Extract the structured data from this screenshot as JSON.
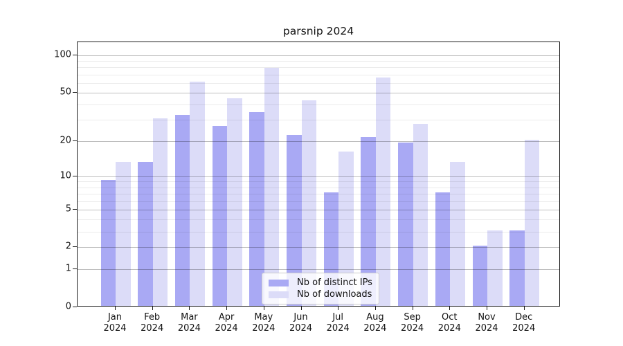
{
  "chart_data": {
    "type": "bar",
    "title": "parsnip 2024",
    "categories": [
      "Jan",
      "Feb",
      "Mar",
      "Apr",
      "May",
      "Jun",
      "Jul",
      "Aug",
      "Sep",
      "Oct",
      "Nov",
      "Dec"
    ],
    "year_label": "2024",
    "series": [
      {
        "name": "Nb of distinct IPs",
        "color": "#a9a9f4",
        "values": [
          9,
          13,
          32,
          26,
          34,
          22,
          7,
          21,
          19,
          7,
          2,
          3
        ]
      },
      {
        "name": "Nb of downloads",
        "color": "#dcdcf8",
        "values": [
          13,
          30,
          60,
          44,
          77,
          42,
          16,
          65,
          27,
          13,
          3,
          20
        ]
      }
    ],
    "yscale": "log1p",
    "y_top_value": 127.5,
    "ytick_values": [
      0,
      1,
      2,
      5,
      10,
      20,
      50,
      100
    ],
    "ytick_labels": [
      "0",
      "1",
      "2",
      "5",
      "10",
      "20",
      "50",
      "100"
    ],
    "yticks_minor": [
      3,
      4,
      6,
      7,
      8,
      9,
      30,
      40,
      60,
      70,
      80,
      90
    ],
    "grid": "on",
    "legend_position": "lower-center"
  }
}
